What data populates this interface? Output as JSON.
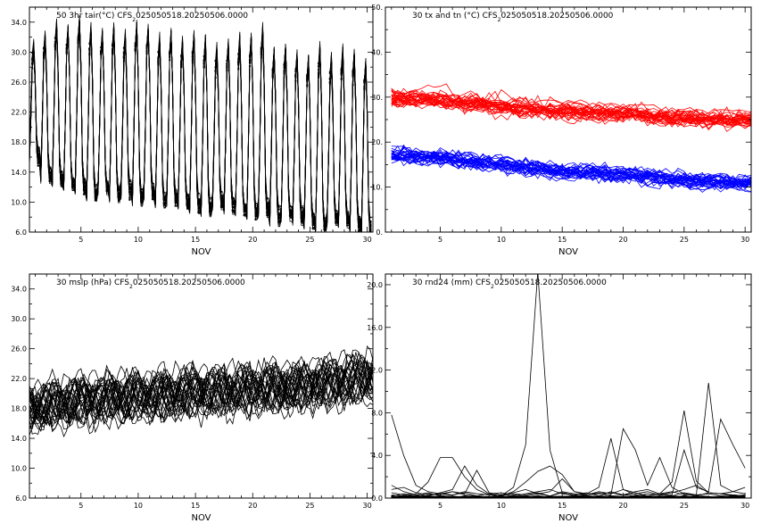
{
  "chart_data": [
    {
      "type": "line",
      "title": "50 3hr tair(°C) CFS2025050518.20250506.0000",
      "title_parts": {
        "prefix": "50 3hr tair(°C) CFS",
        "sub": "2",
        "rest": "025050518.20250506.0000"
      },
      "xlabel": "NOV",
      "xlim": [
        0.5,
        30.5
      ],
      "ylim": [
        6,
        36
      ],
      "xticks": [
        5,
        10,
        15,
        20,
        25,
        30
      ],
      "yticks": [
        6,
        10,
        14,
        18,
        22,
        26,
        30,
        34
      ],
      "ytick_labels": [
        "6.0",
        "10.0",
        "14.0",
        "18.0",
        "22.0",
        "26.0",
        "30.0",
        "34.0"
      ],
      "grid": false,
      "ensemble_members": 50,
      "steps_per_day": 8,
      "diurnal_daily_max": [
        30.5,
        32,
        33.5,
        33,
        34,
        33,
        32.5,
        33,
        32,
        33.5,
        33,
        31.5,
        32.5,
        31,
        32,
        31.5,
        30,
        31,
        31.5,
        32,
        33,
        30,
        30.5,
        29.5,
        29,
        30.5,
        29,
        30,
        29.5,
        28.5
      ],
      "diurnal_daily_min": [
        16,
        13.5,
        13,
        12.5,
        12,
        11,
        12,
        11,
        11.5,
        10.5,
        11,
        10,
        10.5,
        10,
        9.5,
        9,
        10,
        9.5,
        9,
        8.5,
        9,
        8,
        8.5,
        8,
        7.5,
        7,
        8,
        7.5,
        7,
        6.5
      ],
      "series_color": "#000000",
      "markers": true
    },
    {
      "type": "line",
      "title": "30 tx and tn (°C) CFS2025050518.20250506.0000",
      "title_parts": {
        "prefix": "30 tx and tn (°C) CFS",
        "sub": "2",
        "rest": "025050518.20250506.0000"
      },
      "xlabel": "NOV",
      "xlim": [
        0.5,
        30.5
      ],
      "ylim": [
        0,
        50
      ],
      "xticks": [
        5,
        10,
        15,
        20,
        25,
        30
      ],
      "yticks": [
        0,
        10,
        20,
        30,
        40,
        50
      ],
      "ytick_labels": [
        "0.",
        "10.",
        "20.",
        "30.",
        "40.",
        "50."
      ],
      "grid": false,
      "ensemble_members": 30,
      "series": [
        {
          "name": "tx",
          "color": "#ff0000",
          "x": [
            1,
            5,
            10,
            15,
            20,
            25,
            30
          ],
          "values": [
            30,
            29.5,
            28,
            27,
            26.5,
            25.5,
            25
          ],
          "spread": 4.5
        },
        {
          "name": "tn",
          "color": "#0000ff",
          "x": [
            1,
            5,
            10,
            15,
            20,
            25,
            30
          ],
          "values": [
            17,
            16.5,
            15,
            13.5,
            13,
            11.5,
            11
          ],
          "spread": 4.5
        }
      ]
    },
    {
      "type": "line",
      "title": "30 mslp (hPa) CFS2025050518.20250506.0000",
      "title_parts": {
        "prefix": "30 mslp (hPa) CFS",
        "sub": "2",
        "rest": "025050518.20250506.0000"
      },
      "xlabel": "NOV",
      "xlim": [
        0.5,
        30.5
      ],
      "ylim": [
        6,
        36
      ],
      "xticks": [
        5,
        10,
        15,
        20,
        25,
        30
      ],
      "yticks": [
        6,
        10,
        14,
        18,
        22,
        26,
        30,
        34
      ],
      "ytick_labels": [
        "6.0",
        "10.0",
        "14.0",
        "18.0",
        "22.0",
        "26.0",
        "30.0",
        "34.0"
      ],
      "grid": false,
      "ensemble_members": 30,
      "series_color": "#000000",
      "trend_x": [
        1,
        5,
        10,
        15,
        20,
        25,
        30
      ],
      "trend_values": [
        18,
        19,
        19.5,
        20,
        20.5,
        21,
        22
      ],
      "spread": 5
    },
    {
      "type": "line",
      "title": "30 rnd24 (mm) CFS2025050518.20250506.0000",
      "title_parts": {
        "prefix": "30 rnd24 (mm) CFS",
        "sub": "2",
        "rest": "025050518.20250506.0000"
      },
      "xlabel": "NOV",
      "xlim": [
        0.5,
        30.5
      ],
      "ylim": [
        0,
        21
      ],
      "xticks": [
        5,
        10,
        15,
        20,
        25,
        30
      ],
      "yticks": [
        0,
        4,
        8,
        12,
        16,
        20
      ],
      "ytick_labels": [
        "0.0",
        "4.0",
        "8.0",
        "12.0",
        "16.0",
        "20.0"
      ],
      "grid": false,
      "series_color": "#000000",
      "series": [
        {
          "name": "member-1",
          "x": [
            1,
            2,
            3,
            4,
            5,
            6,
            7,
            8,
            9,
            10,
            11,
            12,
            13,
            14,
            15,
            16,
            17,
            18,
            19,
            20,
            21,
            22,
            23,
            24,
            25,
            26,
            27,
            28,
            29,
            30
          ],
          "values": [
            7.8,
            4.0,
            1.2,
            0.6,
            0.4,
            0.3,
            0.5,
            0.2,
            0.1,
            0.3,
            0.5,
            0.8,
            0.4,
            0.2,
            0.5,
            0.3,
            0.1,
            0.2,
            0.6,
            0.3,
            0.2,
            0.4,
            0.3,
            0.2,
            0.5,
            0.3,
            0.4,
            0.2,
            0.3,
            0.2
          ]
        },
        {
          "name": "member-2",
          "x": [
            1,
            2,
            3,
            4,
            5,
            6,
            7,
            8,
            9,
            10,
            11,
            12,
            13,
            14,
            15,
            16,
            17,
            18,
            19,
            20,
            21,
            22,
            23,
            24,
            25,
            26,
            27,
            28,
            29,
            30
          ],
          "values": [
            0.3,
            0.2,
            0.4,
            1.5,
            3.8,
            3.8,
            2.0,
            0.8,
            0.3,
            0.2,
            1.0,
            5.0,
            21.2,
            4.5,
            0.5,
            0.2,
            0.3,
            0.6,
            0.4,
            0.8,
            0.5,
            0.2,
            0.4,
            0.6,
            0.3,
            0.2,
            0.5,
            0.4,
            0.2,
            0.3
          ]
        },
        {
          "name": "member-3",
          "x": [
            1,
            2,
            3,
            4,
            5,
            6,
            7,
            8,
            9,
            10,
            11,
            12,
            13,
            14,
            15,
            16,
            17,
            18,
            19,
            20,
            21,
            22,
            23,
            24,
            25,
            26,
            27,
            28,
            29,
            30
          ],
          "values": [
            1.2,
            0.6,
            0.3,
            0.2,
            0.5,
            0.8,
            3.0,
            1.2,
            0.4,
            0.2,
            0.6,
            1.5,
            2.5,
            3.0,
            2.2,
            0.6,
            0.4,
            1.0,
            5.6,
            0.8,
            0.3,
            0.2,
            0.4,
            1.5,
            8.2,
            1.6,
            0.5,
            0.4,
            0.3,
            0.2
          ]
        },
        {
          "name": "member-4",
          "x": [
            1,
            2,
            3,
            4,
            5,
            6,
            7,
            8,
            9,
            10,
            11,
            12,
            13,
            14,
            15,
            16,
            17,
            18,
            19,
            20,
            21,
            22,
            23,
            24,
            25,
            26,
            27,
            28,
            29,
            30
          ],
          "values": [
            0.5,
            0.3,
            0.2,
            0.4,
            0.3,
            0.6,
            0.4,
            2.6,
            0.5,
            0.3,
            0.2,
            0.4,
            0.6,
            0.8,
            0.4,
            0.3,
            0.5,
            0.2,
            0.3,
            6.5,
            4.5,
            1.2,
            3.8,
            1.0,
            0.4,
            0.3,
            10.8,
            1.2,
            0.6,
            0.4
          ]
        },
        {
          "name": "member-5",
          "x": [
            1,
            2,
            3,
            4,
            5,
            6,
            7,
            8,
            9,
            10,
            11,
            12,
            13,
            14,
            15,
            16,
            17,
            18,
            19,
            20,
            21,
            22,
            23,
            24,
            25,
            26,
            27,
            28,
            29,
            30
          ],
          "values": [
            0.8,
            1.0,
            0.5,
            0.3,
            0.4,
            0.6,
            0.3,
            0.2,
            0.4,
            0.5,
            0.3,
            0.2,
            0.4,
            0.6,
            1.8,
            0.6,
            0.3,
            0.4,
            0.5,
            0.3,
            0.6,
            0.8,
            0.4,
            0.3,
            4.5,
            1.0,
            0.6,
            7.4,
            5.0,
            2.8
          ]
        },
        {
          "name": "member-6",
          "x": [
            1,
            2,
            3,
            4,
            5,
            6,
            7,
            8,
            9,
            10,
            11,
            12,
            13,
            14,
            15,
            16,
            17,
            18,
            19,
            20,
            21,
            22,
            23,
            24,
            25,
            26,
            27,
            28,
            29,
            30
          ],
          "values": [
            0.2,
            0.4,
            0.3,
            0.5,
            0.2,
            0.3,
            0.6,
            0.4,
            0.3,
            0.2,
            0.4,
            0.3,
            0.5,
            0.2,
            0.6,
            0.4,
            0.3,
            0.5,
            0.2,
            0.3,
            0.4,
            0.6,
            0.3,
            0.5,
            0.8,
            1.2,
            0.5,
            0.4,
            0.6,
            1.0
          ]
        }
      ]
    }
  ]
}
